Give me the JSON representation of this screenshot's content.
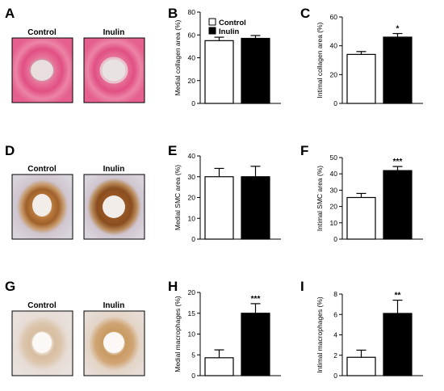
{
  "panel_letters": {
    "A": "A",
    "B": "B",
    "C": "C",
    "D": "D",
    "E": "E",
    "F": "F",
    "G": "G",
    "H": "H",
    "I": "I"
  },
  "micrographs": {
    "A": {
      "left": "Control",
      "right": "Inulin"
    },
    "D": {
      "left": "Control",
      "right": "Inulin"
    },
    "G": {
      "left": "Control",
      "right": "Inulin"
    }
  },
  "legend": {
    "control": "Control",
    "inulin": "Inulin"
  },
  "colors": {
    "control_fill": "#ffffff",
    "inulin_fill": "#000000",
    "stroke": "#000000"
  },
  "chart_data": [
    {
      "panel": "B",
      "type": "bar",
      "categories": [
        "Control",
        "Inulin"
      ],
      "values": [
        55,
        57
      ],
      "errors": [
        3,
        2.5
      ],
      "ylabel": "Medial collagen area (%)",
      "ylim": [
        0,
        80
      ],
      "yticks": [
        0,
        20,
        40,
        60,
        80
      ],
      "significance": [
        "",
        ""
      ]
    },
    {
      "panel": "C",
      "type": "bar",
      "categories": [
        "Control",
        "Inulin"
      ],
      "values": [
        34,
        46
      ],
      "errors": [
        2,
        2.5
      ],
      "ylabel": "Intimal collagen area (%)",
      "ylim": [
        0,
        60
      ],
      "yticks": [
        0,
        20,
        40,
        60
      ],
      "significance": [
        "",
        "*"
      ]
    },
    {
      "panel": "E",
      "type": "bar",
      "categories": [
        "Control",
        "Inulin"
      ],
      "values": [
        30,
        30
      ],
      "errors": [
        4,
        5
      ],
      "ylabel": "Medial SMC area (%)",
      "ylim": [
        0,
        40
      ],
      "yticks": [
        0,
        10,
        20,
        30,
        40
      ],
      "significance": [
        "",
        ""
      ]
    },
    {
      "panel": "F",
      "type": "bar",
      "categories": [
        "Control",
        "Inulin"
      ],
      "values": [
        25.5,
        42
      ],
      "errors": [
        2.5,
        2.5
      ],
      "ylabel": "Intimal SMC area (%)",
      "ylim": [
        0,
        50
      ],
      "yticks": [
        0,
        10,
        20,
        30,
        40,
        50
      ],
      "significance": [
        "",
        "***"
      ]
    },
    {
      "panel": "H",
      "type": "bar",
      "categories": [
        "Control",
        "Inulin"
      ],
      "values": [
        4.3,
        15
      ],
      "errors": [
        1.9,
        2.3
      ],
      "ylabel": "Medial macrophages (%)",
      "ylim": [
        0,
        20
      ],
      "yticks": [
        0,
        5,
        10,
        15,
        20
      ],
      "significance": [
        "",
        "***"
      ]
    },
    {
      "panel": "I",
      "type": "bar",
      "categories": [
        "Control",
        "Inulin"
      ],
      "values": [
        1.8,
        6.1
      ],
      "errors": [
        0.7,
        1.3
      ],
      "ylabel": "Intimal macrophages (%)",
      "ylim": [
        0,
        8
      ],
      "yticks": [
        0,
        2,
        4,
        6,
        8
      ],
      "significance": [
        "",
        "**"
      ]
    }
  ]
}
